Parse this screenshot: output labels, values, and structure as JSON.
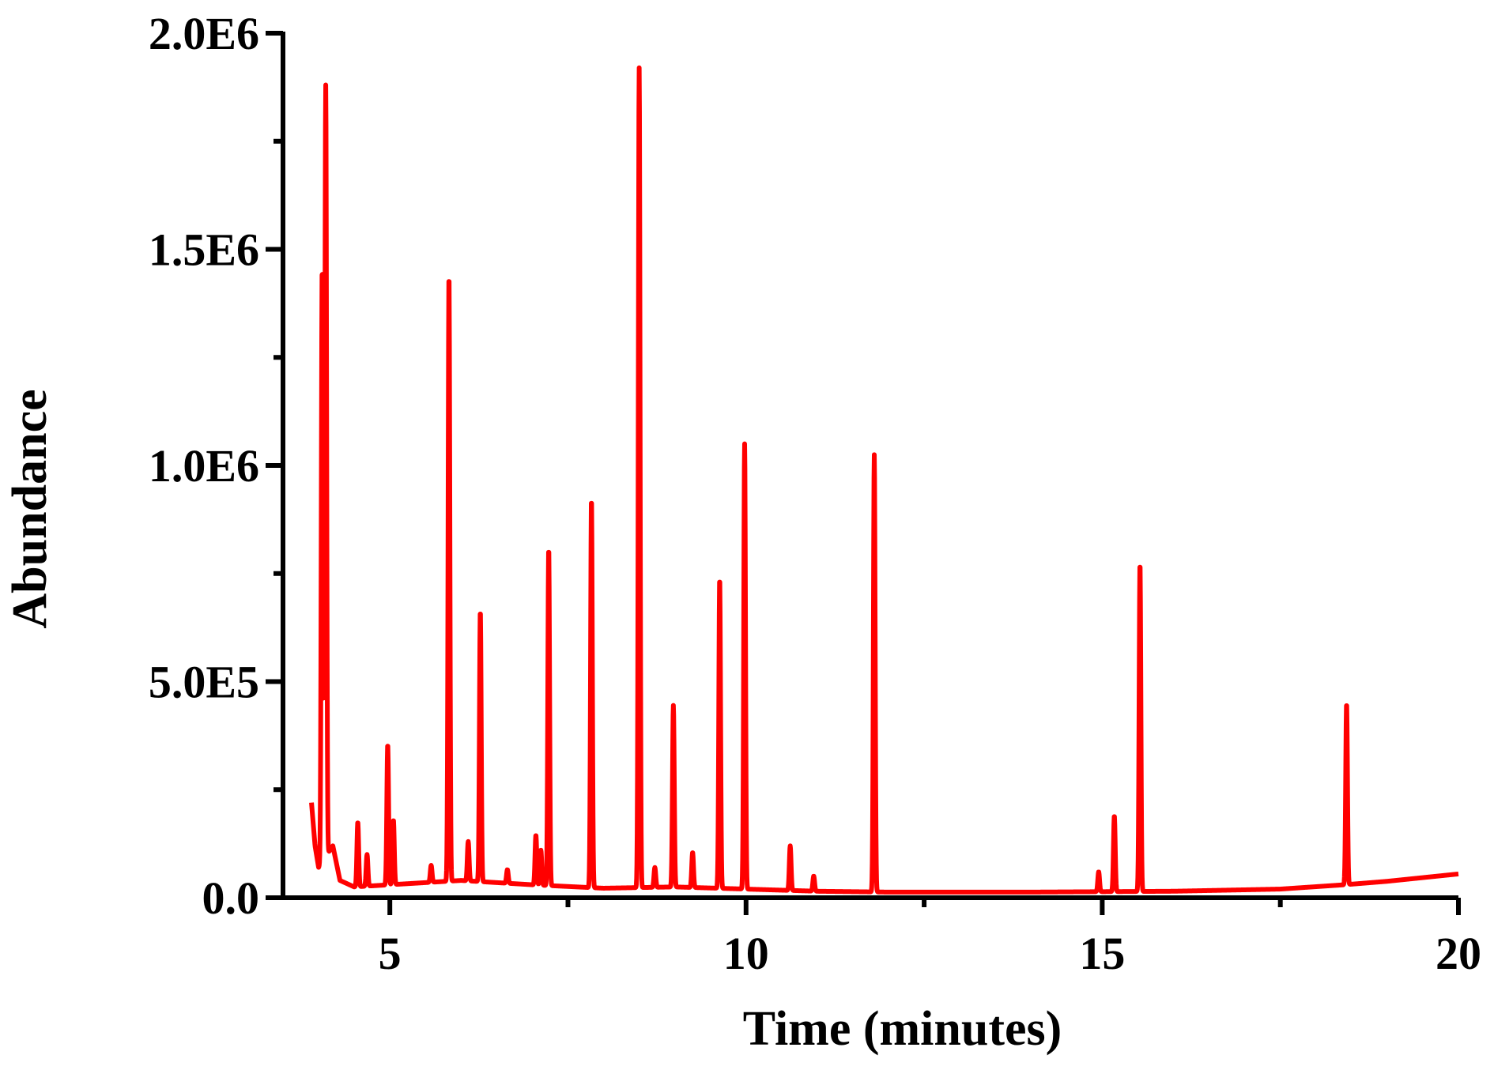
{
  "chart_data": {
    "type": "line",
    "title": "",
    "xlabel": "Time (minutes)",
    "ylabel": "Abundance",
    "xlim": [
      3.5,
      20
    ],
    "ylim": [
      0,
      2000000
    ],
    "x_ticks": [
      5,
      10,
      15,
      20
    ],
    "x_tick_labels": [
      "5",
      "10",
      "15",
      "20"
    ],
    "y_ticks": [
      0,
      500000,
      1000000,
      1500000,
      2000000
    ],
    "y_tick_labels": [
      "0.0",
      "5.0E5",
      "1.0E6",
      "1.5E6",
      "2.0E6"
    ],
    "grid": false,
    "legend": "none",
    "line_color": "#ff0000",
    "series": [
      {
        "peaks": [
          {
            "rt": 4.05,
            "abundance": 1460000
          },
          {
            "rt": 4.1,
            "abundance": 1880000
          },
          {
            "rt": 4.55,
            "abundance": 175000
          },
          {
            "rt": 4.68,
            "abundance": 100000
          },
          {
            "rt": 4.97,
            "abundance": 355000
          },
          {
            "rt": 5.05,
            "abundance": 180000
          },
          {
            "rt": 5.58,
            "abundance": 75000
          },
          {
            "rt": 5.83,
            "abundance": 1445000
          },
          {
            "rt": 6.1,
            "abundance": 130000
          },
          {
            "rt": 6.27,
            "abundance": 665000
          },
          {
            "rt": 6.65,
            "abundance": 65000
          },
          {
            "rt": 7.05,
            "abundance": 145000
          },
          {
            "rt": 7.12,
            "abundance": 110000
          },
          {
            "rt": 7.23,
            "abundance": 810000
          },
          {
            "rt": 7.83,
            "abundance": 925000
          },
          {
            "rt": 8.5,
            "abundance": 1920000
          },
          {
            "rt": 8.72,
            "abundance": 70000
          },
          {
            "rt": 8.98,
            "abundance": 445000
          },
          {
            "rt": 9.25,
            "abundance": 105000
          },
          {
            "rt": 9.63,
            "abundance": 740000
          },
          {
            "rt": 9.98,
            "abundance": 1050000
          },
          {
            "rt": 10.62,
            "abundance": 120000
          },
          {
            "rt": 10.95,
            "abundance": 50000
          },
          {
            "rt": 11.8,
            "abundance": 1025000
          },
          {
            "rt": 14.95,
            "abundance": 60000
          },
          {
            "rt": 15.17,
            "abundance": 190000
          },
          {
            "rt": 15.53,
            "abundance": 775000
          },
          {
            "rt": 18.43,
            "abundance": 450000
          }
        ],
        "baseline": [
          {
            "x": 3.9,
            "y": 220000
          },
          {
            "x": 3.95,
            "y": 120000
          },
          {
            "x": 4.0,
            "y": 70000
          },
          {
            "x": 4.2,
            "y": 120000
          },
          {
            "x": 4.3,
            "y": 40000
          },
          {
            "x": 4.5,
            "y": 25000
          },
          {
            "x": 5.5,
            "y": 35000
          },
          {
            "x": 6.0,
            "y": 40000
          },
          {
            "x": 7.0,
            "y": 30000
          },
          {
            "x": 8.0,
            "y": 22000
          },
          {
            "x": 9.0,
            "y": 25000
          },
          {
            "x": 10.0,
            "y": 20000
          },
          {
            "x": 11.0,
            "y": 15000
          },
          {
            "x": 12.0,
            "y": 13000
          },
          {
            "x": 14.0,
            "y": 13000
          },
          {
            "x": 16.0,
            "y": 15000
          },
          {
            "x": 17.5,
            "y": 20000
          },
          {
            "x": 18.4,
            "y": 30000
          },
          {
            "x": 19.0,
            "y": 38000
          },
          {
            "x": 20.0,
            "y": 55000
          }
        ]
      }
    ]
  }
}
